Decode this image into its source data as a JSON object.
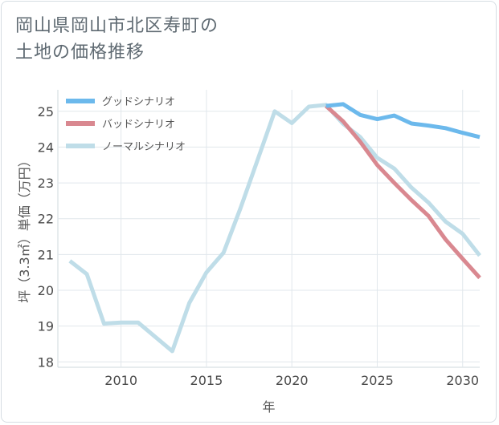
{
  "title_lines": [
    "岡山県岡山市北区寿町の",
    "土地の価格推移"
  ],
  "chart_data": {
    "type": "line",
    "xlabel": "年",
    "ylabel": "坪（3.3㎡）単価（万円）",
    "xlim": [
      2006.3,
      2031
    ],
    "ylim": [
      17.85,
      25.6
    ],
    "xticks": [
      2010,
      2015,
      2020,
      2025,
      2030
    ],
    "yticks": [
      18,
      19,
      20,
      21,
      22,
      23,
      24,
      25
    ],
    "grid": true,
    "legend_position": "top-left",
    "series": [
      {
        "name": "グッドシナリオ",
        "color": "#6cb9ec",
        "x": [
          2022,
          2023,
          2024,
          2025,
          2026,
          2027,
          2028,
          2029,
          2030,
          2031
        ],
        "y": [
          25.15,
          25.2,
          24.9,
          24.78,
          24.88,
          24.66,
          24.6,
          24.53,
          24.4,
          24.28
        ]
      },
      {
        "name": "バッドシナリオ",
        "color": "#d98890",
        "x": [
          2022,
          2023,
          2024,
          2025,
          2026,
          2027,
          2028,
          2029,
          2030,
          2031
        ],
        "y": [
          25.15,
          24.72,
          24.15,
          23.5,
          23.0,
          22.52,
          22.08,
          21.42,
          20.88,
          20.35
        ]
      },
      {
        "name": "ノーマルシナリオ",
        "color": "#bfdde8",
        "x": [
          2007,
          2008,
          2009,
          2010,
          2011,
          2013,
          2014,
          2015,
          2016,
          2017,
          2018,
          2019,
          2020,
          2021,
          2022,
          2023,
          2024,
          2025,
          2026,
          2027,
          2028,
          2029,
          2030,
          2031
        ],
        "y": [
          20.82,
          20.45,
          19.07,
          19.1,
          19.1,
          18.3,
          19.65,
          20.5,
          21.05,
          22.3,
          23.65,
          25.0,
          24.67,
          25.13,
          25.18,
          24.65,
          24.28,
          23.7,
          23.4,
          22.87,
          22.45,
          21.92,
          21.58,
          20.97
        ]
      }
    ]
  }
}
